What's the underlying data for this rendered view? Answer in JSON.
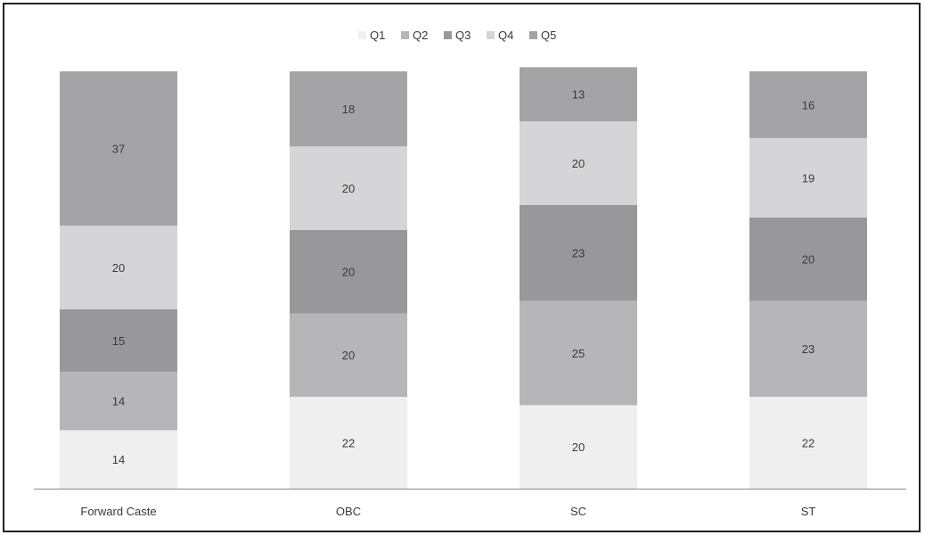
{
  "chart_data": {
    "type": "bar",
    "stacked": true,
    "categories": [
      "Forward Caste",
      "OBC",
      "SC",
      "ST"
    ],
    "series": [
      {
        "name": "Q1",
        "values": [
          14,
          22,
          20,
          22
        ],
        "color": "#efefef"
      },
      {
        "name": "Q2",
        "values": [
          14,
          20,
          25,
          23
        ],
        "color": "#b6b6b8"
      },
      {
        "name": "Q3",
        "values": [
          15,
          20,
          23,
          20
        ],
        "color": "#98989b"
      },
      {
        "name": "Q4",
        "values": [
          20,
          20,
          20,
          19
        ],
        "color": "#d5d5d7"
      },
      {
        "name": "Q5",
        "values": [
          37,
          18,
          13,
          16
        ],
        "color": "#a4a4a7"
      }
    ],
    "ylim": [
      0,
      100
    ],
    "legend": "top-center",
    "grid": false,
    "title": "",
    "xlabel": "",
    "ylabel": ""
  }
}
